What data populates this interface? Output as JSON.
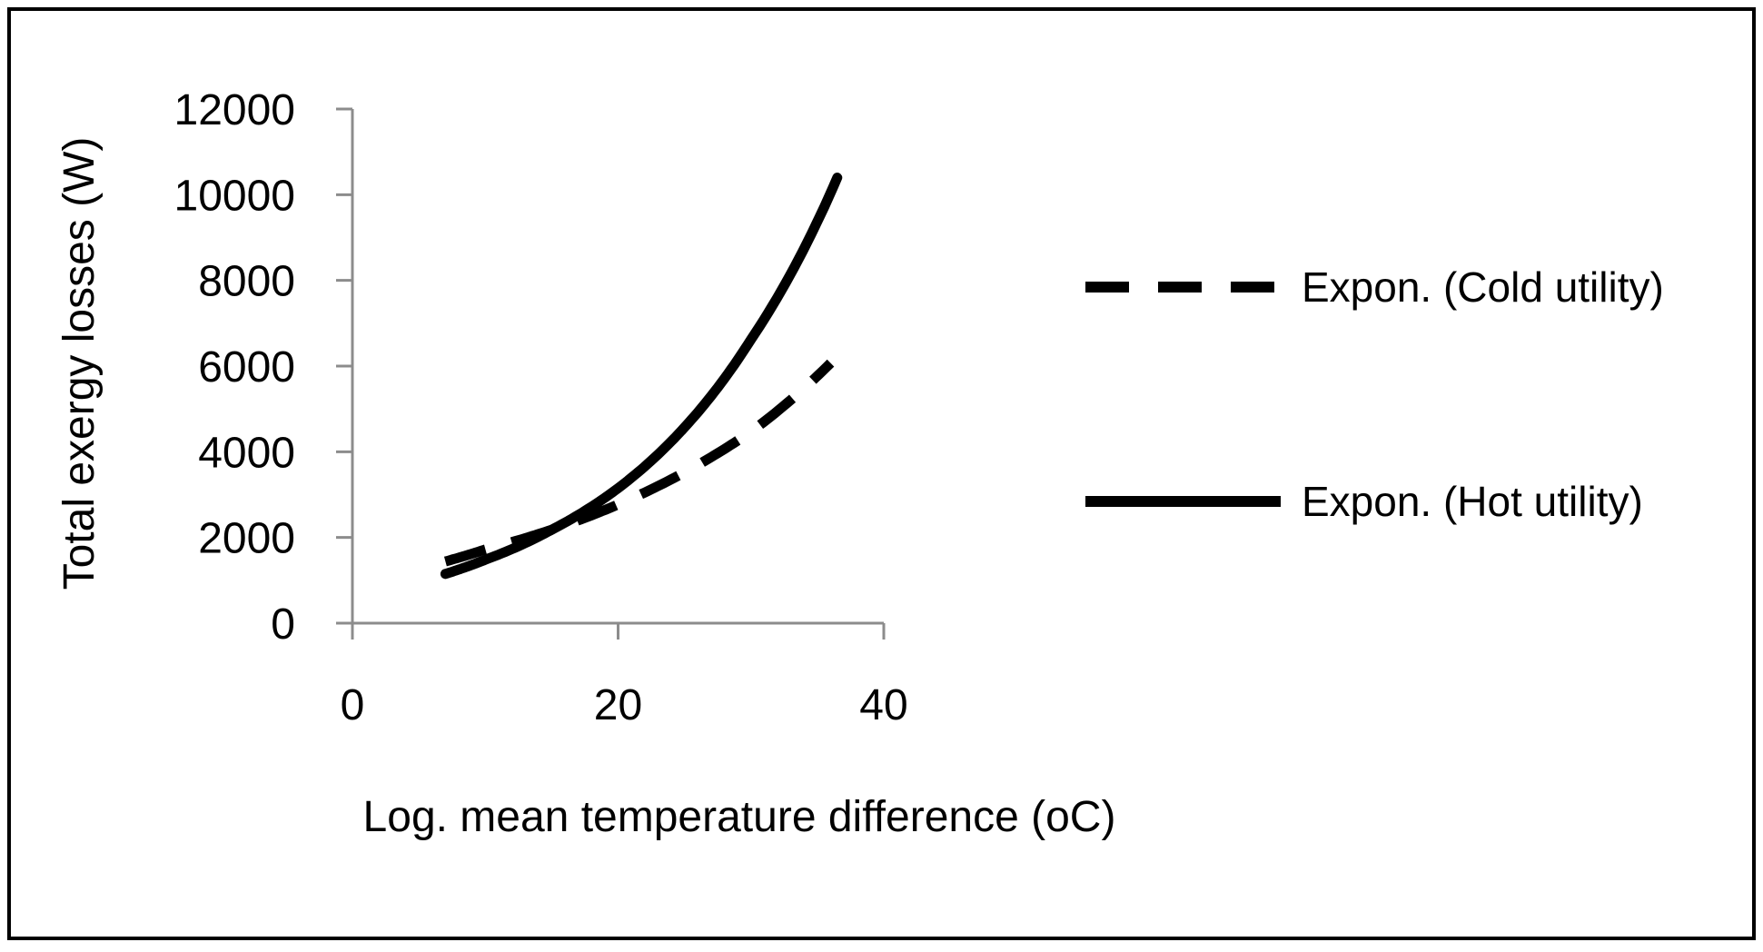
{
  "chart_data": {
    "type": "line",
    "title": "",
    "xlabel": "Log. mean temperature difference (oC)",
    "ylabel": "Total exergy losses (W)",
    "xlim": [
      0,
      40
    ],
    "ylim": [
      0,
      12000
    ],
    "x_ticks": [
      0,
      20,
      40
    ],
    "x_tick_labels": [
      "0",
      "20",
      "40"
    ],
    "y_ticks": [
      0,
      2000,
      4000,
      6000,
      8000,
      10000,
      12000
    ],
    "y_tick_labels": [
      "0",
      "2000",
      "4000",
      "6000",
      "8000",
      "10000",
      "12000"
    ],
    "grid": false,
    "legend_position": "right",
    "series": [
      {
        "name": "Expon. (Cold utility)",
        "style": "dashed",
        "color": "#000000",
        "x": [
          7,
          10,
          15,
          20,
          25,
          30,
          36
        ],
        "values": [
          1440,
          1720,
          2180,
          2770,
          3520,
          4470,
          6070
        ]
      },
      {
        "name": "Expon. (Hot utility)",
        "style": "solid",
        "color": "#000000",
        "x": [
          7,
          10,
          15,
          20,
          25,
          30,
          36.5
        ],
        "values": [
          1150,
          1480,
          2180,
          3150,
          4570,
          6620,
          10400
        ]
      }
    ]
  }
}
